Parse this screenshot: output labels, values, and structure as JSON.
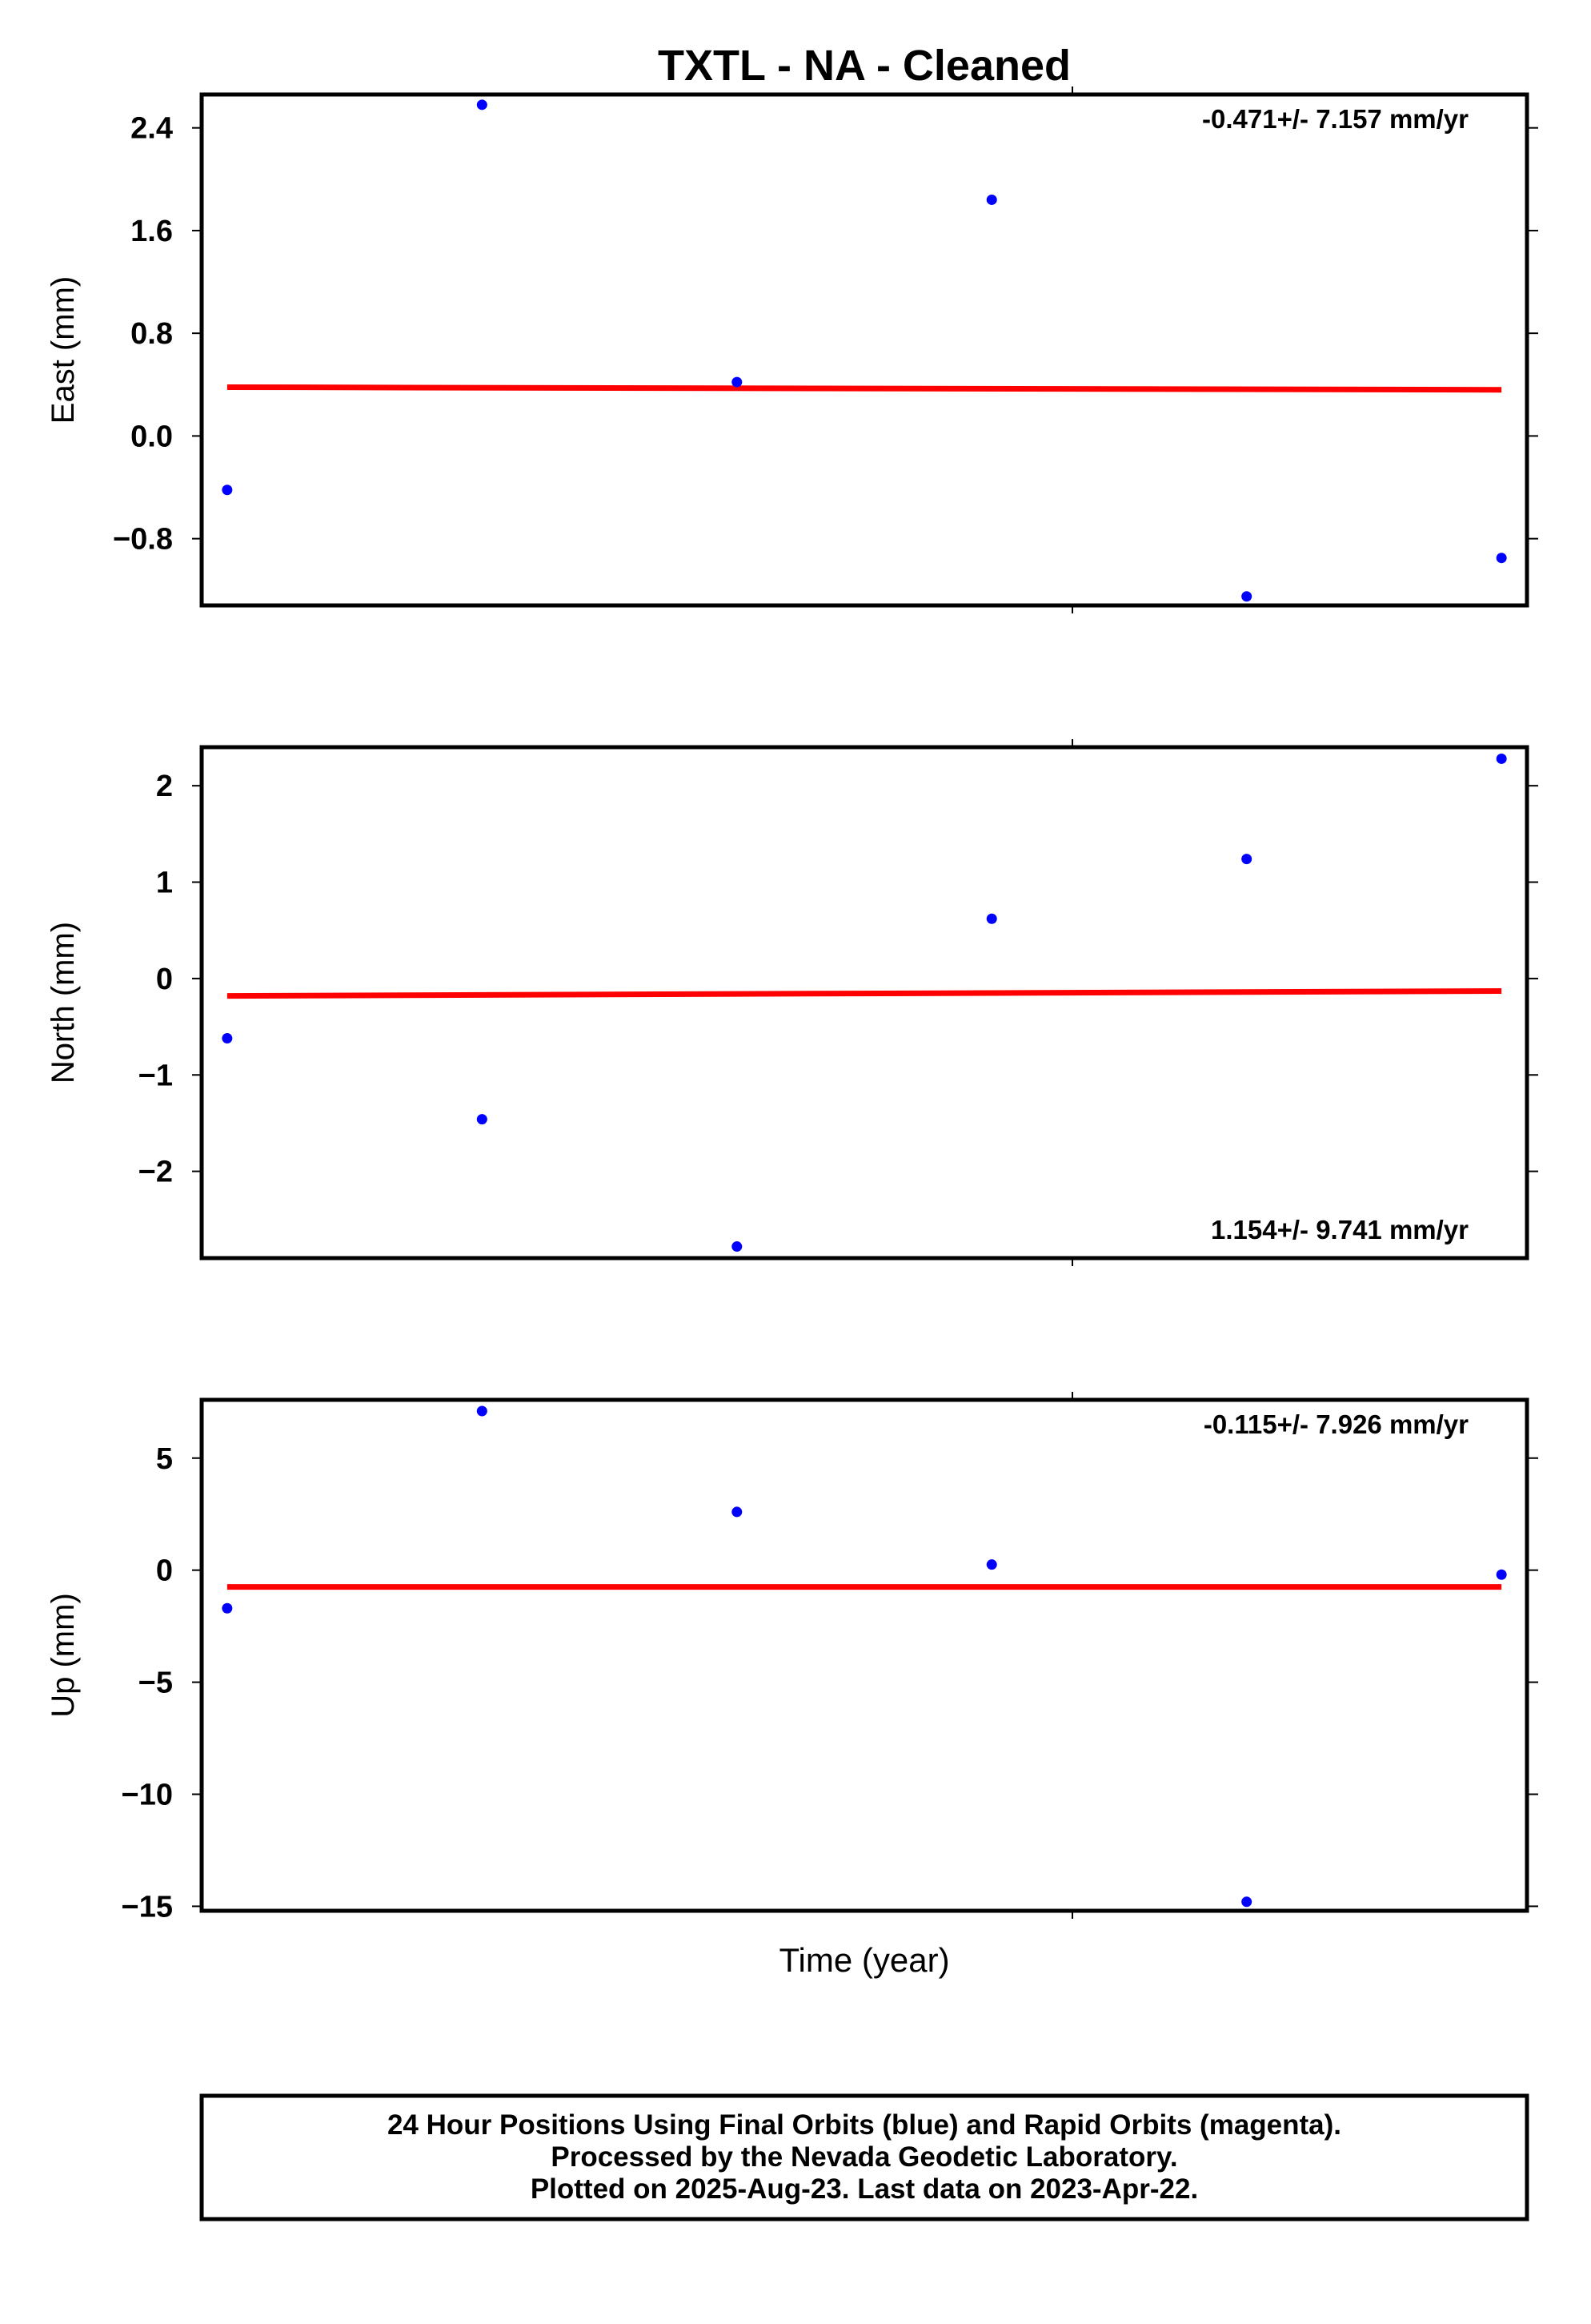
{
  "figure": {
    "title": "TXTL  - NA - Cleaned",
    "xlabel": "Time (year)",
    "footer": [
      "24 Hour Positions Using Final Orbits (blue) and Rapid Orbits (magenta).",
      "Processed by the Nevada Geodetic Laboratory.",
      "Plotted on 2025-Aug-23. Last data on 2023-Apr-22."
    ]
  },
  "colors": {
    "points": "#0000ff",
    "trend": "#ff0000",
    "frame": "#000000"
  },
  "chart_data": [
    {
      "type": "scatter",
      "ylabel": "East (mm)",
      "rate_text": "-0.471+/- 7.157 mm/yr",
      "rate_position": "top-right",
      "ylim": [
        -1.32,
        2.66
      ],
      "yticks": [
        2.4,
        1.6,
        0.8,
        0.0,
        -0.8
      ],
      "yticklabels": [
        "2.4",
        "1.6",
        "0.8",
        "0.0",
        "−0.8"
      ],
      "x": [
        1,
        2,
        3,
        4,
        5,
        6
      ],
      "y": [
        -0.42,
        2.58,
        0.42,
        1.84,
        -1.25,
        -0.95
      ],
      "trend": [
        0.38,
        0.36
      ]
    },
    {
      "type": "scatter",
      "ylabel": "North (mm)",
      "rate_text": "1.154+/- 9.741 mm/yr",
      "rate_position": "bottom-right",
      "ylim": [
        -2.9,
        2.4
      ],
      "yticks": [
        2,
        1,
        0,
        -1,
        -2
      ],
      "yticklabels": [
        "2",
        "1",
        "0",
        "−1",
        "−2"
      ],
      "x": [
        1,
        2,
        3,
        4,
        5,
        6
      ],
      "y": [
        -0.62,
        -1.46,
        -2.78,
        0.62,
        1.24,
        2.28
      ],
      "trend": [
        -0.18,
        -0.13
      ]
    },
    {
      "type": "scatter",
      "ylabel": "Up (mm)",
      "rate_text": "-0.115+/- 7.926 mm/yr",
      "rate_position": "top-right",
      "ylim": [
        -15.2,
        7.6
      ],
      "yticks": [
        5,
        0,
        -5,
        -10,
        -15
      ],
      "yticklabels": [
        "5",
        "0",
        "−5",
        "−10",
        "−15"
      ],
      "x": [
        1,
        2,
        3,
        4,
        5,
        6
      ],
      "y": [
        -1.7,
        7.1,
        2.6,
        0.25,
        -14.8,
        -0.2
      ],
      "trend": [
        -0.75,
        -0.75
      ]
    }
  ]
}
